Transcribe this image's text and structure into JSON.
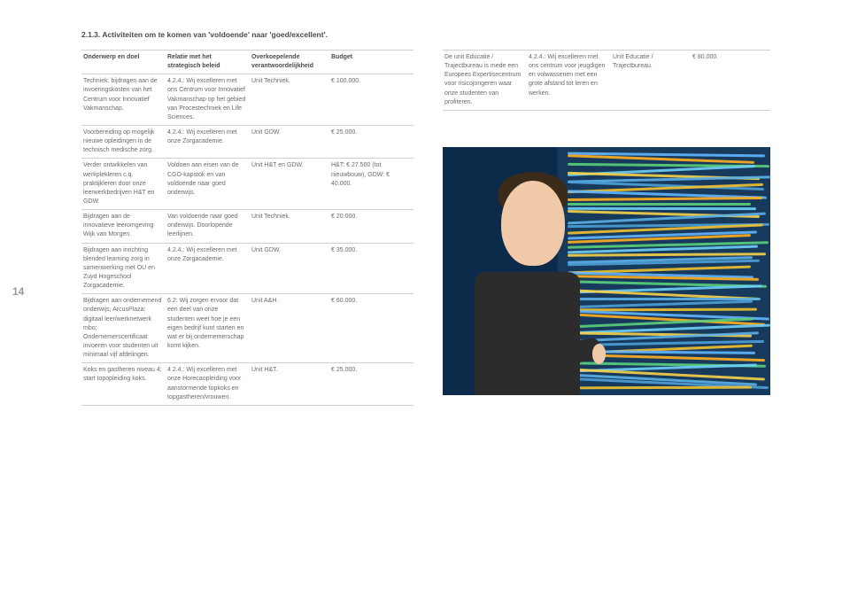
{
  "page_number": "14",
  "section_title": "2.1.3.  Activiteiten om te komen van 'voldoende' naar 'goed/excellent'.",
  "headers": {
    "c1": "Onderwerp en doel",
    "c2": "Relatie met het strategisch beleid",
    "c3": "Overkoepelende verantwoordelijkheid",
    "c4": "Budget"
  },
  "left_rows": [
    {
      "c1": "Techniek: bijdragen aan de invoeringskosten van het Centrum voor Innovatief Vakmanschap.",
      "c2": "4.2.4.: Wij excelleren met ons Centrum voor Innovatief Vakmanschap op het gebied van Procestechniek en Life Sciences.",
      "c3": "Unit Techniek.",
      "c4": "€ 100.000."
    },
    {
      "c1": "Voorbereiding op mogelijk nieuwe opleidingen in de technisch medische zorg.",
      "c2": "4.2.4.: Wij excelleren met onze Zorgacademie.",
      "c3": "Unit GDW.",
      "c4": "€ 25.000."
    },
    {
      "c1": "Verder ontwikkelen van werkplekleren c.q. praktijkleren door onze leerwerkbedrijven H&T en GDW.",
      "c2": "Voldoen aan eisen van de CGO-kapstok en van voldoende naar goed onderwijs.",
      "c3": "Unit H&T en GDW.",
      "c4": "H&T: € 27.500 (tot nieuwbouw), GDW: € 40.000."
    },
    {
      "c1": "Bijdragen aan de innovatieve leeromgeving Wijk van Morgen.",
      "c2": "Van voldoende naar goed onderwijs.\nDoorlopende leerlijnen.",
      "c3": "Unit Techniek.",
      "c4": "€ 20.000."
    },
    {
      "c1": "Bijdragen aan inrichting blended learning zorg in samenwerking met OU en Zuyd Hogeschool Zorgacademie.",
      "c2": "4.2.4.: Wij excelleren met onze Zorgacademie.",
      "c3": "Unit GDW.",
      "c4": "€ 35.000."
    },
    {
      "c1": "Bijdragen aan ondernemend onderwijs; ArcusPlaza: digitaal leer/werknetwerk mbo; Ondernemerscertificaat invoeren voor studenten uit minimaal vijf afdelingen.",
      "c2": "6.2: Wij zorgen ervoor dat een deel van onze studenten weet hoe je een eigen bedrijf kunt starten en wat er bij ondernemerschap komt kijken.",
      "c3": "Unit A&H.",
      "c4": "€ 60.000."
    },
    {
      "c1": "Koks en gastheren niveau 4; start topopleiding koks.",
      "c2": "4.2.4.: Wij excelleren met onze Horecaopleiding voor aanstormende topkoks en topgastheren/vrouwen.",
      "c3": "Unit H&T.",
      "c4": "€ 25.000."
    }
  ],
  "right_row": {
    "c1": "De unit Educatie / Trajectbureau is mede een Europees Expertisecentrum voor risicojongeren waar onze studenten van profiteren.",
    "c2": "4.2.4.: Wij excelleren met ons centrum voor jeugdigen en volwassenen met een grote afstand tot leren en werken.",
    "c3": "Unit Educatie / Trajectbureau.",
    "c4": "€ 80.000."
  },
  "photo": {
    "bg_dark": "#0c2b4a",
    "bg_mid": "#173a5c",
    "cable_colors": [
      "#62b6ff",
      "#ffb020",
      "#5ad07a",
      "#6ecff6",
      "#f6d24a",
      "#5bb0e8",
      "#4ea0d8",
      "#f2c230"
    ],
    "skin": "#f0c9a8",
    "hair": "#3a2b1a",
    "shirt": "#2c2c2c"
  }
}
